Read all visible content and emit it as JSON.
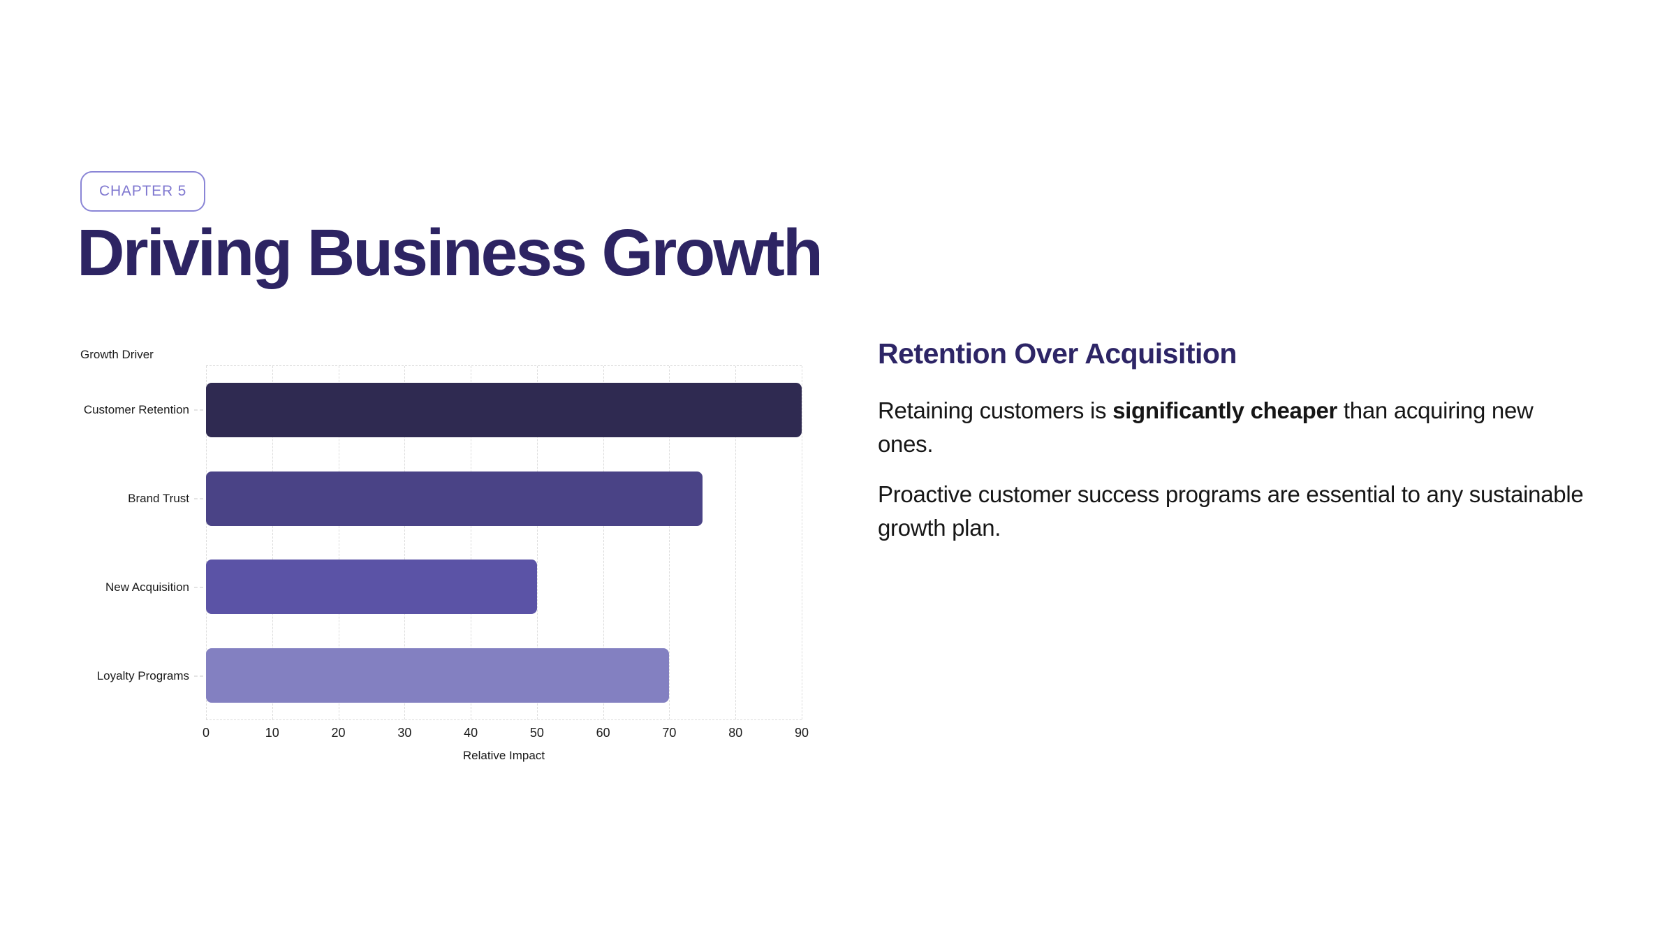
{
  "badge": {
    "label": "CHAPTER 5"
  },
  "title": "Driving Business Growth",
  "chart_data": {
    "type": "bar",
    "orientation": "horizontal",
    "categories": [
      "Customer Retention",
      "Brand Trust",
      "New Acquisition",
      "Loyalty Programs"
    ],
    "values": [
      90,
      75,
      50,
      70
    ],
    "bar_colors": [
      "#2f2a51",
      "#4a4386",
      "#5b53a6",
      "#8380c1"
    ],
    "xlabel": "Relative Impact",
    "ylabel": "Growth Driver",
    "xlim": [
      0,
      90
    ],
    "xticks": [
      0,
      10,
      20,
      30,
      40,
      50,
      60,
      70,
      80,
      90
    ],
    "grid": "dashed-vertical",
    "legend": "none"
  },
  "panel": {
    "heading": "Retention Over Acquisition",
    "para1": {
      "pre": "Retaining customers is ",
      "bold": "significantly cheaper",
      "post": " than acquiring new",
      "line2": "ones."
    },
    "para2": {
      "line1": "Proactive customer success programs are essential to any sustainable",
      "line2": "growth plan."
    }
  },
  "colors": {
    "title": "#2d2463",
    "heading": "#2d2566",
    "badge": "#8078d0",
    "badge_border": "#8a85d6",
    "body_text": "#161616",
    "axis_text": "#1a1a1a",
    "grid": "#dcdcdc",
    "background": "#ffffff"
  }
}
